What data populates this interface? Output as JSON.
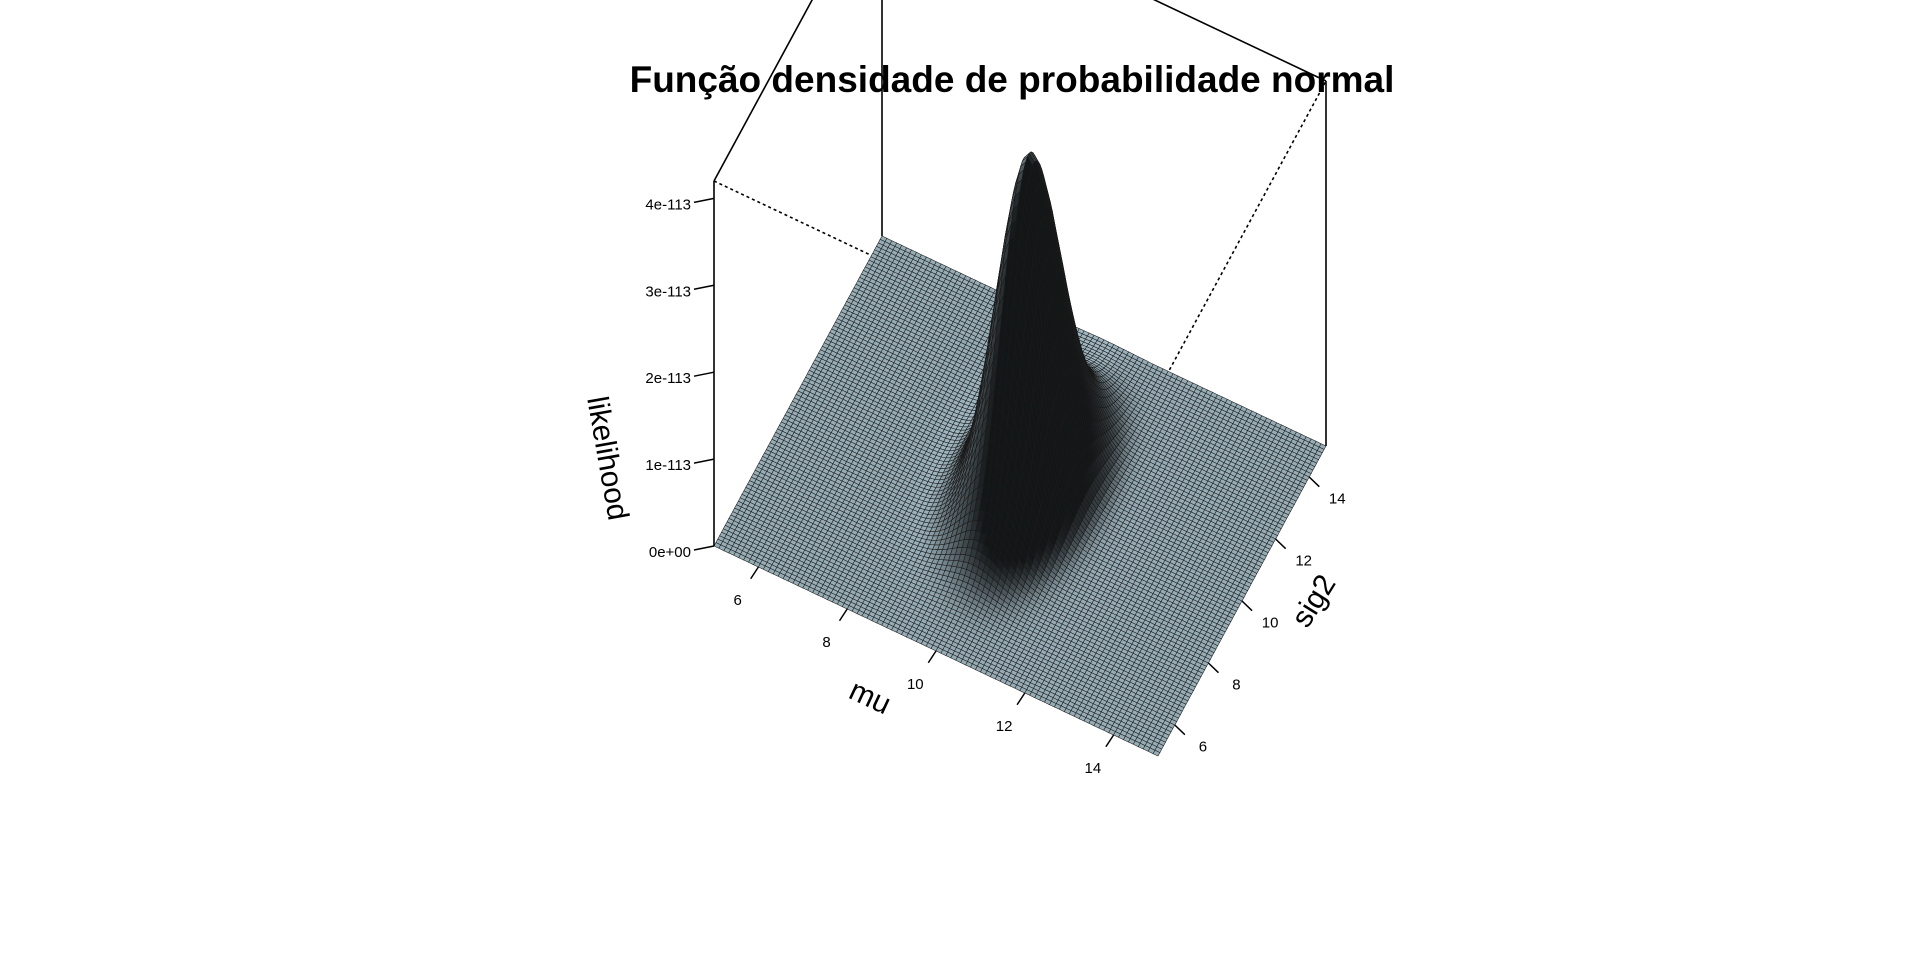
{
  "chart_data": {
    "type": "surface3d",
    "title": "Função densidade de probabilidade normal",
    "xlabel": "mu",
    "ylabel": "sig2",
    "zlabel": "likelihood",
    "xlim": [
      5,
      15
    ],
    "ylim": [
      5,
      15
    ],
    "zlim": [
      0,
      4.2e-113
    ],
    "x_ticks": [
      6,
      8,
      10,
      12,
      14
    ],
    "y_ticks": [
      6,
      8,
      10,
      12,
      14
    ],
    "z_ticks": [
      "0e+00",
      "1e-113",
      "2e-113",
      "3e-113",
      "4e-113"
    ],
    "z_tick_values": [
      0,
      1e-113,
      2e-113,
      3e-113,
      4e-113
    ],
    "surface_peak": {
      "mu": 10.0,
      "sig2": 10.5,
      "likelihood": 3.75e-113
    },
    "surface_color": "#9fb6c0",
    "grid_color": "#1a1a1a"
  }
}
